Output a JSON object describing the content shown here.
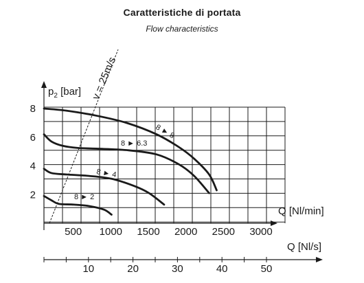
{
  "chart_data": {
    "type": "line",
    "title": "Caratteristiche di portata",
    "subtitle": "Flow characteristics",
    "ylabel_main": "p",
    "ylabel_sub": "2",
    "ylabel_unit": "[bar]",
    "xlabel": "Q [Nl/min]",
    "x2label": "Q [Nl/s]",
    "ylim": [
      0,
      8
    ],
    "xlim": [
      0,
      3000
    ],
    "x2lim": [
      0,
      50
    ],
    "yticks": [
      "2",
      "4",
      "6",
      "8"
    ],
    "xticks": [
      "500",
      "1000",
      "1500",
      "2000",
      "2500",
      "3000"
    ],
    "x2ticks": [
      "10",
      "20",
      "30",
      "40",
      "50"
    ],
    "grid": true,
    "velocity_line_label": "v = 25m/s",
    "series": [
      {
        "name": "8 ► 8",
        "x": [
          0,
          300,
          700,
          1100,
          1500,
          1800,
          2000,
          2200,
          2300
        ],
        "y": [
          8,
          7.85,
          7.5,
          7,
          6.2,
          5.3,
          4.5,
          3.4,
          2.3
        ]
      },
      {
        "name": "8 ► 6.3",
        "x": [
          0,
          100,
          250,
          450,
          700,
          1100,
          1500,
          1800,
          2000,
          2200
        ],
        "y": [
          6.2,
          5.7,
          5.4,
          5.25,
          5.2,
          5.1,
          4.8,
          4.1,
          3.3,
          2.1
        ]
      },
      {
        "name": "8 ► 4",
        "x": [
          0,
          100,
          300,
          600,
          900,
          1200,
          1400,
          1600
        ],
        "y": [
          3.8,
          3.5,
          3.4,
          3.3,
          3.1,
          2.6,
          2.1,
          1.3
        ]
      },
      {
        "name": "8 ► 2",
        "x": [
          0,
          100,
          200,
          400,
          600,
          800,
          900
        ],
        "y": [
          1.9,
          1.6,
          1.35,
          1.3,
          1.2,
          0.95,
          0.6
        ]
      }
    ]
  }
}
